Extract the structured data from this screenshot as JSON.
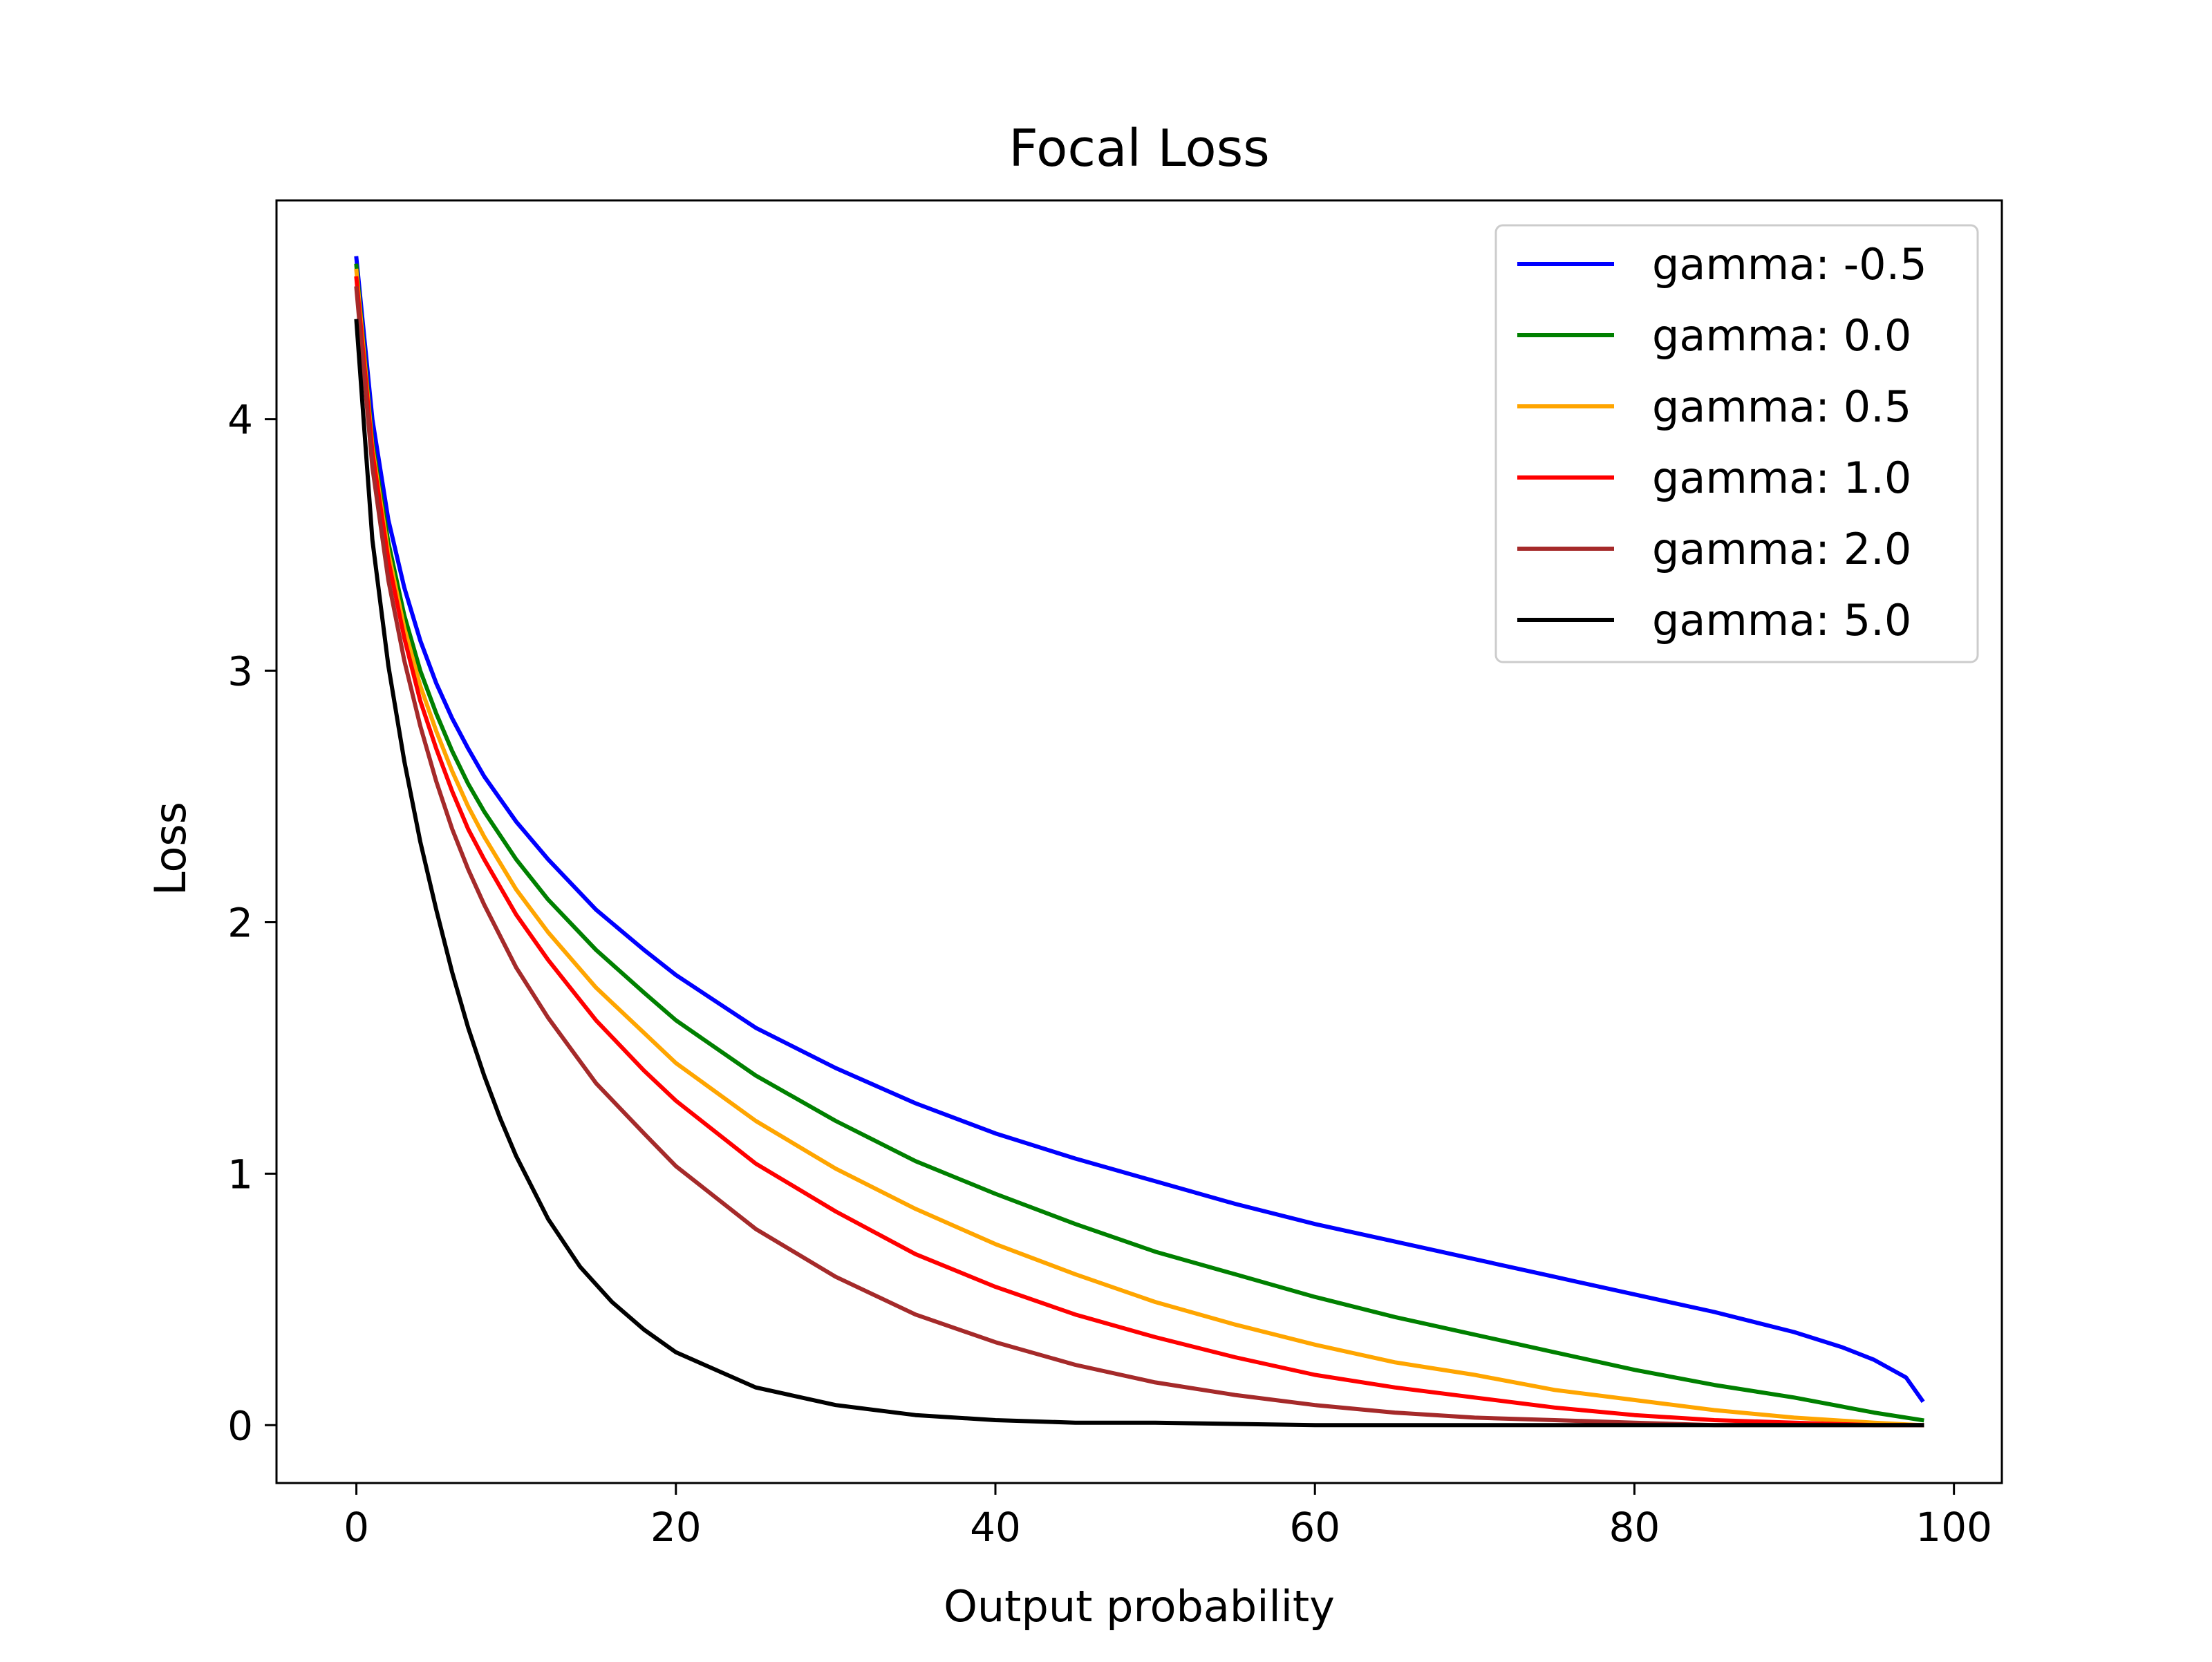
{
  "chart_data": {
    "type": "line",
    "title": "Focal Loss",
    "xlabel": "Output probability",
    "ylabel": "Loss",
    "xlim": [
      -5,
      103
    ],
    "ylim": [
      -0.23,
      4.87
    ],
    "xticks": [
      0,
      20,
      40,
      60,
      80,
      100
    ],
    "xtick_labels": [
      "0",
      "20",
      "40",
      "60",
      "80",
      "100"
    ],
    "yticks": [
      0,
      1,
      2,
      3,
      4
    ],
    "ytick_labels": [
      "0",
      "1",
      "2",
      "3",
      "4"
    ],
    "grid": false,
    "legend_position": "top-right",
    "series": [
      {
        "name": "gamma: -0.5",
        "color": "#0000ff",
        "x": [
          0,
          1,
          2,
          3,
          4,
          5,
          6,
          7,
          8,
          10,
          12,
          15,
          18,
          20,
          25,
          30,
          35,
          40,
          45,
          50,
          55,
          60,
          65,
          70,
          75,
          80,
          85,
          90,
          93,
          95,
          97,
          98
        ],
        "y": [
          4.64,
          4.0,
          3.6,
          3.33,
          3.12,
          2.95,
          2.81,
          2.69,
          2.58,
          2.4,
          2.25,
          2.05,
          1.89,
          1.79,
          1.58,
          1.42,
          1.28,
          1.16,
          1.06,
          0.97,
          0.88,
          0.8,
          0.73,
          0.66,
          0.59,
          0.52,
          0.45,
          0.37,
          0.31,
          0.26,
          0.19,
          0.1
        ]
      },
      {
        "name": "gamma: 0.0",
        "color": "#008000",
        "x": [
          0,
          1,
          2,
          3,
          4,
          5,
          6,
          7,
          8,
          10,
          12,
          15,
          18,
          20,
          25,
          30,
          35,
          40,
          45,
          50,
          55,
          60,
          65,
          70,
          75,
          80,
          85,
          90,
          95,
          98
        ],
        "y": [
          4.61,
          3.91,
          3.51,
          3.22,
          3.0,
          2.83,
          2.68,
          2.55,
          2.44,
          2.25,
          2.09,
          1.89,
          1.72,
          1.61,
          1.39,
          1.21,
          1.05,
          0.92,
          0.8,
          0.69,
          0.6,
          0.51,
          0.43,
          0.36,
          0.29,
          0.22,
          0.16,
          0.11,
          0.05,
          0.02
        ]
      },
      {
        "name": "gamma: 0.5",
        "color": "#ffa500",
        "x": [
          0,
          1,
          2,
          3,
          4,
          5,
          6,
          7,
          8,
          10,
          12,
          15,
          18,
          20,
          25,
          30,
          35,
          40,
          45,
          50,
          55,
          60,
          65,
          70,
          75,
          80,
          85,
          90,
          95,
          98
        ],
        "y": [
          4.59,
          3.89,
          3.47,
          3.17,
          2.94,
          2.76,
          2.6,
          2.46,
          2.34,
          2.13,
          1.96,
          1.74,
          1.56,
          1.44,
          1.21,
          1.02,
          0.86,
          0.72,
          0.6,
          0.49,
          0.4,
          0.32,
          0.25,
          0.2,
          0.14,
          0.1,
          0.06,
          0.03,
          0.01,
          0.0
        ]
      },
      {
        "name": "gamma: 1.0",
        "color": "#ff0000",
        "x": [
          0,
          1,
          2,
          3,
          4,
          5,
          6,
          7,
          8,
          10,
          12,
          15,
          18,
          20,
          25,
          30,
          35,
          40,
          45,
          50,
          55,
          60,
          65,
          70,
          75,
          80,
          85,
          90,
          95,
          98
        ],
        "y": [
          4.56,
          3.87,
          3.44,
          3.13,
          2.88,
          2.69,
          2.52,
          2.37,
          2.25,
          2.03,
          1.85,
          1.61,
          1.41,
          1.29,
          1.04,
          0.85,
          0.68,
          0.55,
          0.44,
          0.35,
          0.27,
          0.2,
          0.15,
          0.11,
          0.07,
          0.04,
          0.02,
          0.01,
          0.0,
          0.0
        ]
      },
      {
        "name": "gamma: 2.0",
        "color": "#a52a2a",
        "x": [
          0,
          1,
          2,
          3,
          4,
          5,
          6,
          7,
          8,
          10,
          12,
          15,
          18,
          20,
          25,
          30,
          35,
          40,
          45,
          50,
          55,
          60,
          65,
          70,
          75,
          80,
          85,
          90,
          95,
          98
        ],
        "y": [
          4.52,
          3.81,
          3.36,
          3.04,
          2.78,
          2.56,
          2.37,
          2.21,
          2.07,
          1.82,
          1.62,
          1.36,
          1.16,
          1.03,
          0.78,
          0.59,
          0.44,
          0.33,
          0.24,
          0.17,
          0.12,
          0.08,
          0.05,
          0.03,
          0.02,
          0.01,
          0.0,
          0.0,
          0.0,
          0.0
        ]
      },
      {
        "name": "gamma: 5.0",
        "color": "#000000",
        "x": [
          0,
          1,
          2,
          3,
          4,
          5,
          6,
          7,
          8,
          9,
          10,
          12,
          14,
          16,
          18,
          20,
          25,
          30,
          35,
          40,
          45,
          50,
          60,
          70,
          80,
          90,
          98
        ],
        "y": [
          4.39,
          3.52,
          3.02,
          2.64,
          2.32,
          2.05,
          1.8,
          1.58,
          1.39,
          1.22,
          1.07,
          0.82,
          0.63,
          0.49,
          0.38,
          0.29,
          0.15,
          0.08,
          0.04,
          0.02,
          0.01,
          0.01,
          0.0,
          0.0,
          0.0,
          0.0,
          0.0
        ]
      }
    ]
  }
}
